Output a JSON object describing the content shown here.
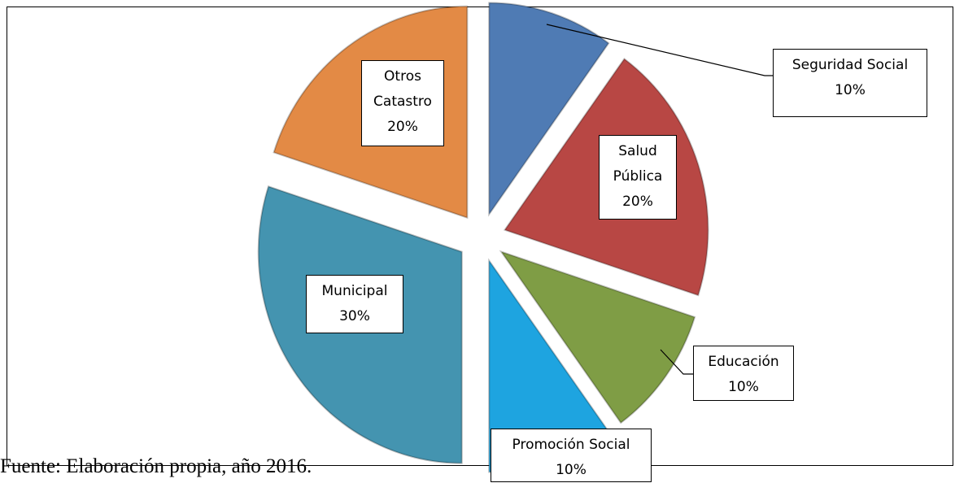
{
  "chart_data": {
    "type": "pie",
    "categories": [
      "Seguridad Social",
      "Salud Pública",
      "Educación",
      "Promoción Social",
      "Municipal",
      "Otros Catastro"
    ],
    "values": [
      10,
      20,
      10,
      10,
      30,
      20
    ],
    "value_labels": [
      "10%",
      "20%",
      "10%",
      "10%",
      "30%",
      "20%"
    ],
    "colors": [
      "#4f7bb4",
      "#b84744",
      "#7f9d45",
      "#1ea4e0",
      "#4494b0",
      "#e38a45"
    ],
    "source": "Fuente: Elaboración propia, año 2016."
  }
}
